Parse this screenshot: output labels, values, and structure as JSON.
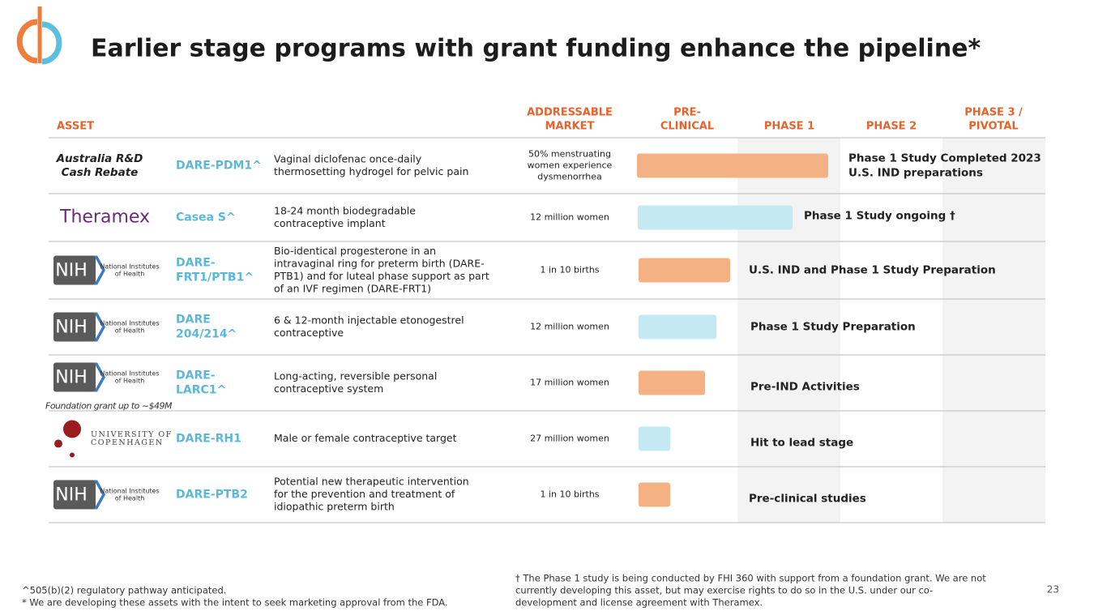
{
  "title": "Earlier stage programs with grant funding enhance the pipeline*",
  "table": {
    "headers": [
      [
        "ASSET"
      ],
      [
        "ADDRESSABLE",
        "MARKET"
      ],
      [
        "PRE-",
        "CLINICAL"
      ],
      [
        "PHASE 1"
      ],
      [
        "PHASE 2"
      ],
      [
        "PHASE 3 /",
        "PIVOTAL"
      ]
    ],
    "rows": [
      {
        "sponsor": {
          "text": [
            "Australia R&D",
            "Cash Rebate"
          ]
        },
        "asset": [
          "DARE-PDM1^"
        ],
        "description": [
          "Vaginal diclofenac once-daily",
          "thermosetting hydrogel for pelvic pain"
        ],
        "market": [
          "50% menstruating",
          "women experience",
          "dysmenorrhea"
        ],
        "stage": [
          "Phase 1 Study Completed 2023",
          "U.S. IND preparations"
        ]
      },
      {
        "sponsor": {
          "text": [
            "Theramex"
          ]
        },
        "asset": [
          "Casea S^"
        ],
        "description": [
          "18-24 month biodegradable",
          "contraceptive implant"
        ],
        "market": [
          "12 million women"
        ],
        "stage": [
          "Phase 1 Study ongoing †"
        ]
      },
      {
        "sponsor": {
          "logo": "NIH",
          "name": [
            "National Institutes",
            "of Health"
          ]
        },
        "asset": [
          "DARE-",
          "FRT1/PTB1^"
        ],
        "description": [
          "Bio-identical progesterone  in an",
          "intravaginal ring for preterm birth (DARE-",
          "PTB1) and for luteal phase support as part",
          "of an IVF regimen (DARE-FRT1)"
        ],
        "market": [
          "1 in 10 births"
        ],
        "stage": [
          "U.S. IND and Phase 1 Study Preparation"
        ]
      },
      {
        "sponsor": {
          "logo": "NIH",
          "name": [
            "National Institutes",
            "of Health"
          ]
        },
        "asset": [
          "DARE",
          "204/214^"
        ],
        "description": [
          "6 & 12-month injectable etonogestrel",
          "contraceptive"
        ],
        "market": [
          "12 million women"
        ],
        "stage": [
          "Phase 1 Study Preparation"
        ]
      },
      {
        "sponsor": {
          "logo": "NIH",
          "name": [
            "National Institutes",
            "of Health"
          ],
          "note": "Foundation grant up to ~$49M"
        },
        "asset": [
          "DARE-",
          "LARC1^"
        ],
        "description": [
          "Long-acting, reversible personal",
          "contraceptive system"
        ],
        "market": [
          "17 million women"
        ],
        "stage": [
          "Pre-IND Activities"
        ]
      },
      {
        "sponsor": {
          "text": [
            "UNIVERSITY OF",
            "COPENHAGEN"
          ]
        },
        "asset": [
          "DARE-RH1"
        ],
        "description": [
          "Male or female contraceptive target"
        ],
        "market": [
          "27 million women"
        ],
        "stage": [
          "Hit to lead stage"
        ]
      },
      {
        "sponsor": {
          "logo": "NIH",
          "name": [
            "National Institutes",
            "of Health"
          ]
        },
        "asset": [
          "DARE-PTB2"
        ],
        "description": [
          "Potential new therapeutic intervention",
          "for the prevention and treatment of",
          "idiopathic preterm birth"
        ],
        "market": [
          "1 in 10 births"
        ],
        "stage": [
          "Pre-clinical studies"
        ]
      }
    ]
  },
  "footnotes": {
    "left": [
      "^505(b)(2) regulatory pathway anticipated.",
      " * We are developing these assets with the intent to seek marketing approval from the FDA."
    ],
    "right": [
      "† The Phase 1 study is being conducted by FHI 360 with support from a foundation grant. We are not",
      "currently developing this asset, but may exercise rights to do so in the U.S. under our co-",
      "development and license agreement with Theramex."
    ]
  },
  "page_number": "23"
}
